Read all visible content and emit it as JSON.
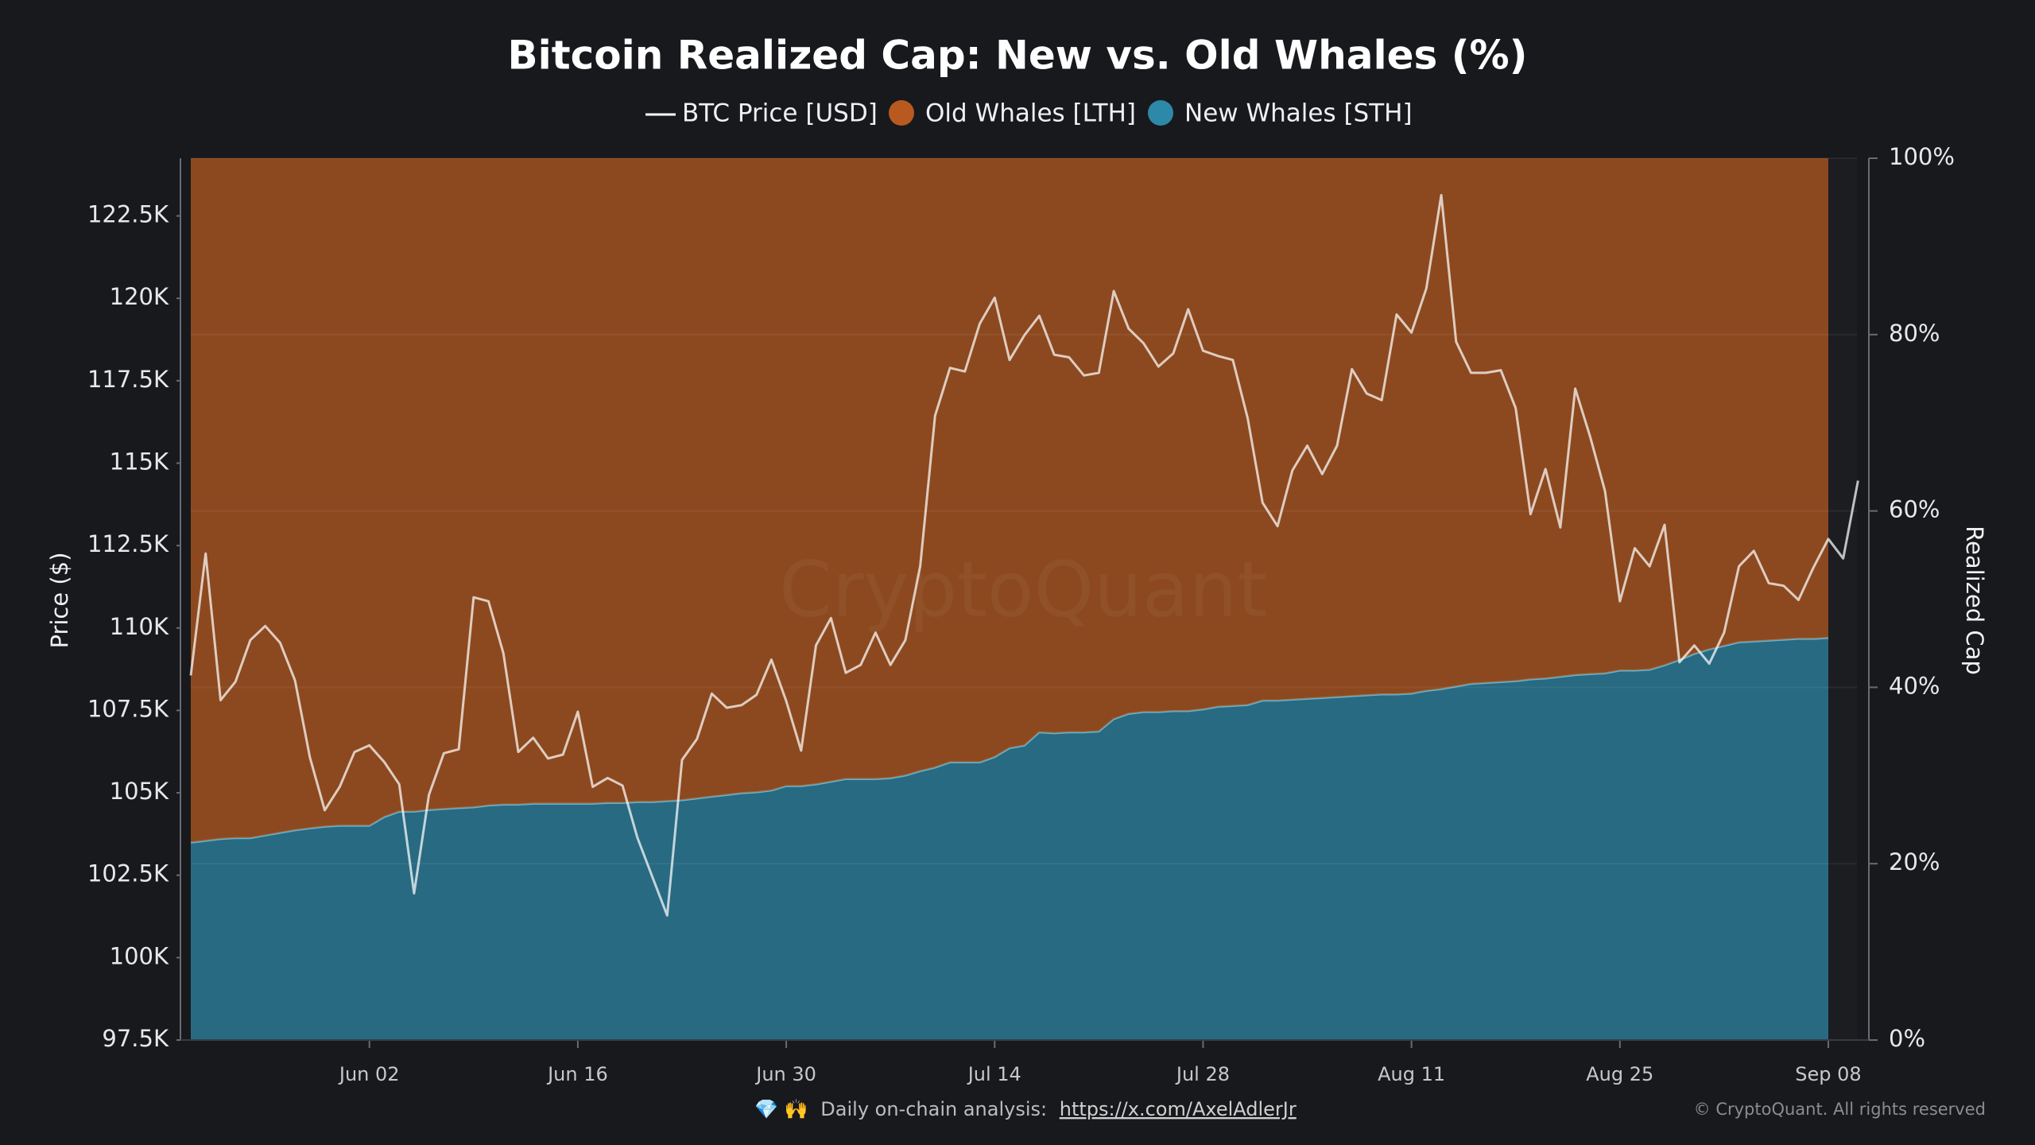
{
  "chart_data": {
    "type": "area",
    "title": "Bitcoin Realized Cap: New vs. Old Whales (%)",
    "y_label": "Price ($)",
    "y2_label": "Realized Cap",
    "watermark": "CryptoQuant",
    "stacked": true,
    "grid": true,
    "x": [
      "May 21",
      "May 22",
      "May 23",
      "May 24",
      "May 25",
      "May 26",
      "May 27",
      "May 28",
      "May 29",
      "May 30",
      "May 31",
      "Jun 01",
      "Jun 02",
      "Jun 03",
      "Jun 04",
      "Jun 05",
      "Jun 06",
      "Jun 07",
      "Jun 08",
      "Jun 09",
      "Jun 10",
      "Jun 11",
      "Jun 12",
      "Jun 13",
      "Jun 14",
      "Jun 15",
      "Jun 16",
      "Jun 17",
      "Jun 18",
      "Jun 19",
      "Jun 20",
      "Jun 21",
      "Jun 22",
      "Jun 23",
      "Jun 24",
      "Jun 25",
      "Jun 26",
      "Jun 27",
      "Jun 28",
      "Jun 29",
      "Jun 30",
      "Jul 01",
      "Jul 02",
      "Jul 03",
      "Jul 04",
      "Jul 05",
      "Jul 06",
      "Jul 07",
      "Jul 08",
      "Jul 09",
      "Jul 10",
      "Jul 11",
      "Jul 12",
      "Jul 13",
      "Jul 14",
      "Jul 15",
      "Jul 16",
      "Jul 17",
      "Jul 18",
      "Jul 19",
      "Jul 20",
      "Jul 21",
      "Jul 22",
      "Jul 23",
      "Jul 24",
      "Jul 25",
      "Jul 26",
      "Jul 27",
      "Jul 28",
      "Jul 29",
      "Jul 30",
      "Jul 31",
      "Aug 01",
      "Aug 02",
      "Aug 03",
      "Aug 04",
      "Aug 05",
      "Aug 06",
      "Aug 07",
      "Aug 08",
      "Aug 09",
      "Aug 10",
      "Aug 11",
      "Aug 12",
      "Aug 13",
      "Aug 14",
      "Aug 15",
      "Aug 16",
      "Aug 17",
      "Aug 18",
      "Aug 19",
      "Aug 20",
      "Aug 21",
      "Aug 22",
      "Aug 23",
      "Aug 24",
      "Aug 25",
      "Aug 26",
      "Aug 27",
      "Aug 28",
      "Aug 29",
      "Aug 30",
      "Aug 31",
      "Sep 01",
      "Sep 02",
      "Sep 03",
      "Sep 04",
      "Sep 05",
      "Sep 06",
      "Sep 07",
      "Sep 08",
      "Sep 09",
      "Sep 10"
    ],
    "xticks": [
      "Jun 02",
      "Jun 16",
      "Jun 30",
      "Jul 14",
      "Jul 28",
      "Aug 11",
      "Aug 25",
      "Sep 08"
    ],
    "ylim": [
      97500,
      124250
    ],
    "yticks": [
      {
        "value": 97500,
        "label": "97.5K"
      },
      {
        "value": 100000,
        "label": "100K"
      },
      {
        "value": 102500,
        "label": "102.5K"
      },
      {
        "value": 105000,
        "label": "105K"
      },
      {
        "value": 107500,
        "label": "107.5K"
      },
      {
        "value": 110000,
        "label": "110K"
      },
      {
        "value": 112500,
        "label": "112.5K"
      },
      {
        "value": 115000,
        "label": "115K"
      },
      {
        "value": 117500,
        "label": "117.5K"
      },
      {
        "value": 120000,
        "label": "120K"
      },
      {
        "value": 122500,
        "label": "122.5K"
      }
    ],
    "y2lim": [
      0,
      100
    ],
    "y2ticks": [
      {
        "value": 0,
        "label": "0%"
      },
      {
        "value": 20,
        "label": "20%"
      },
      {
        "value": 40,
        "label": "40%"
      },
      {
        "value": 60,
        "label": "60%"
      },
      {
        "value": 80,
        "label": "80%"
      },
      {
        "value": 100,
        "label": "100%"
      }
    ],
    "series": [
      {
        "name": "BTC Price [USD]",
        "type": "line",
        "color": "#ffffff",
        "values": [
          108560,
          112260,
          107810,
          108370,
          109630,
          110060,
          109550,
          108410,
          106080,
          104470,
          105180,
          106240,
          106440,
          105930,
          105260,
          101950,
          104940,
          106200,
          106320,
          110930,
          110810,
          109230,
          106240,
          106670,
          106040,
          106160,
          107460,
          105180,
          105450,
          105220,
          103640,
          102460,
          101280,
          106000,
          106630,
          108010,
          107580,
          107660,
          107970,
          109040,
          107780,
          106280,
          109470,
          110300,
          108640,
          108880,
          109860,
          108880,
          109630,
          111870,
          116440,
          117890,
          117780,
          119230,
          120020,
          118130,
          118880,
          119470,
          118290,
          118210,
          117660,
          117740,
          120220,
          119080,
          118640,
          117930,
          118330,
          119670,
          118410,
          118250,
          118130,
          116360,
          113800,
          113090,
          114780,
          115530,
          114670,
          115530,
          117850,
          117110,
          116910,
          119510,
          118960,
          120300,
          123130,
          118680,
          117740,
          117740,
          117820,
          116670,
          113450,
          114820,
          113050,
          117260,
          115810,
          114150,
          110810,
          112420,
          111870,
          113130,
          108960,
          109470,
          108920,
          109860,
          111870,
          112340,
          111360,
          111280,
          110850,
          111830,
          112700,
          112110,
          114470
        ]
      },
      {
        "name": "Old Whales [LTH]",
        "type": "area",
        "axis": "y2",
        "color": "#b85a1f",
        "values": [
          77.6,
          77.4,
          77.2,
          77.1,
          77.1,
          76.8,
          76.5,
          76.2,
          76,
          75.8,
          75.7,
          75.7,
          75.7,
          74.7,
          74.1,
          74.1,
          73.9,
          73.8,
          73.7,
          73.6,
          73.4,
          73.3,
          73.3,
          73.2,
          73.2,
          73.2,
          73.2,
          73.2,
          73.1,
          73.1,
          73,
          73,
          72.9,
          72.8,
          72.6,
          72.4,
          72.2,
          72,
          71.9,
          71.7,
          71.2,
          71.2,
          71,
          70.7,
          70.4,
          70.4,
          70.4,
          70.3,
          70,
          69.5,
          69.1,
          68.5,
          68.5,
          68.5,
          67.9,
          66.9,
          66.6,
          65.1,
          65.2,
          65.1,
          65.1,
          65,
          63.6,
          63,
          62.8,
          62.8,
          62.7,
          62.7,
          62.5,
          62.2,
          62.1,
          62,
          61.5,
          61.5,
          61.4,
          61.3,
          61.2,
          61.1,
          61,
          60.9,
          60.8,
          60.8,
          60.7,
          60.4,
          60.2,
          59.9,
          59.6,
          59.5,
          59.4,
          59.3,
          59.1,
          59,
          58.8,
          58.6,
          58.5,
          58.4,
          58.1,
          58.1,
          58,
          57.5,
          56.9,
          56.2,
          55.7,
          55.3,
          54.9,
          54.8,
          54.7,
          54.6,
          54.5,
          54.5,
          54.4,
          null,
          null
        ]
      },
      {
        "name": "New Whales [STH]",
        "type": "area",
        "axis": "y2",
        "color": "#2e88a8",
        "line_color": "#5fb8d6",
        "values": [
          22.4,
          22.6,
          22.8,
          22.9,
          22.9,
          23.2,
          23.5,
          23.8,
          24,
          24.2,
          24.3,
          24.3,
          24.3,
          25.3,
          25.9,
          25.9,
          26.1,
          26.2,
          26.3,
          26.4,
          26.6,
          26.7,
          26.7,
          26.8,
          26.8,
          26.8,
          26.8,
          26.8,
          26.9,
          26.9,
          27,
          27,
          27.1,
          27.2,
          27.4,
          27.6,
          27.8,
          28,
          28.1,
          28.3,
          28.8,
          28.8,
          29,
          29.3,
          29.6,
          29.6,
          29.6,
          29.7,
          30,
          30.5,
          30.9,
          31.5,
          31.5,
          31.5,
          32.1,
          33.1,
          33.4,
          34.9,
          34.8,
          34.9,
          34.9,
          35,
          36.4,
          37,
          37.2,
          37.2,
          37.3,
          37.3,
          37.5,
          37.8,
          37.9,
          38,
          38.5,
          38.5,
          38.6,
          38.7,
          38.8,
          38.9,
          39,
          39.1,
          39.2,
          39.2,
          39.3,
          39.6,
          39.8,
          40.1,
          40.4,
          40.5,
          40.6,
          40.7,
          40.9,
          41,
          41.2,
          41.4,
          41.5,
          41.6,
          41.9,
          41.9,
          42,
          42.5,
          43.1,
          43.8,
          44.3,
          44.7,
          45.1,
          45.2,
          45.3,
          45.4,
          45.5,
          45.5,
          45.6,
          null,
          null
        ]
      }
    ],
    "footer": {
      "icons": "💎 🙌",
      "text": "Daily on-chain analysis:",
      "link": "https://x.com/AxelAdlerJr",
      "copyright": "© CryptoQuant. All rights reserved"
    }
  }
}
